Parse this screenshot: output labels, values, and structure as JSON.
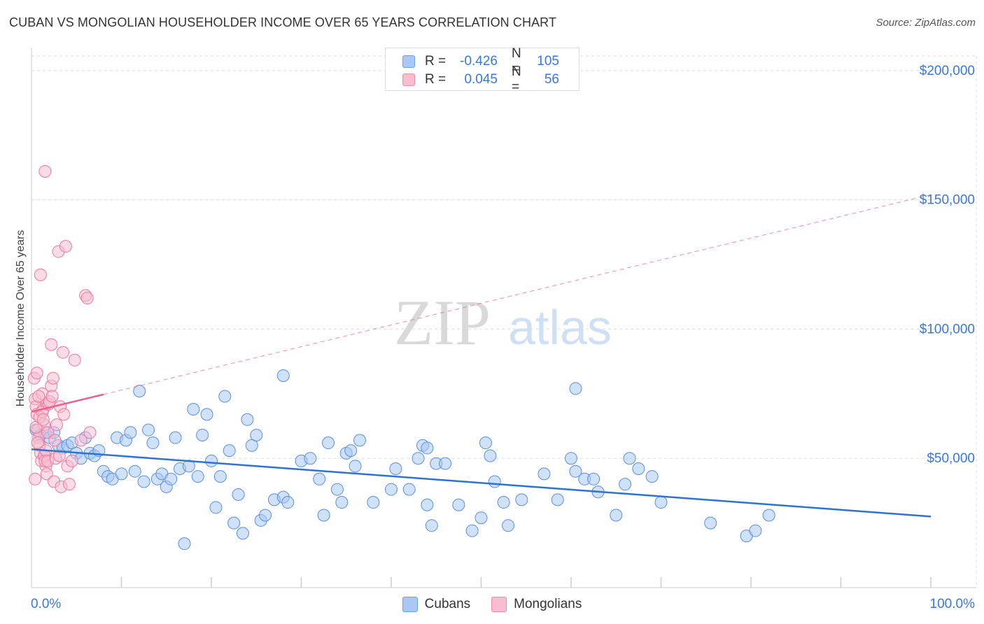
{
  "title": "CUBAN VS MONGOLIAN HOUSEHOLDER INCOME OVER 65 YEARS CORRELATION CHART",
  "source": "Source: ZipAtlas.com",
  "watermark": {
    "zip": "ZIP",
    "atlas": "atlas"
  },
  "legend": {
    "r_label": "R =",
    "n_label": "N =",
    "rows": [
      {
        "r": "-0.426",
        "n": "105",
        "fill": "#a9c8f5",
        "stroke": "#6f9fe6"
      },
      {
        "r": "0.045",
        "n": "56",
        "fill": "#f8bed0",
        "stroke": "#ee8aab"
      }
    ]
  },
  "colors": {
    "cuban_fill": "#a9c8f5",
    "cuban_stroke": "#5b8fe0",
    "cuban_line": "#2f73d0",
    "mongol_fill": "#f8bed0",
    "mongol_stroke": "#ea7aa0",
    "mongol_line": "#e8608c",
    "grid": "#dddddd",
    "tick_text": "#3a78d8"
  },
  "chart_data": {
    "type": "scatter",
    "title": "CUBAN VS MONGOLIAN HOUSEHOLDER INCOME OVER 65 YEARS CORRELATION CHART",
    "xlabel": "",
    "ylabel": "Householder Income Over 65 years",
    "xlim": [
      0,
      100
    ],
    "ylim": [
      0,
      207000
    ],
    "x_tick_labels": [
      "0.0%",
      "100.0%"
    ],
    "y_ticks": [
      50000,
      100000,
      150000,
      200000
    ],
    "y_tick_labels": [
      "$50,000",
      "$100,000",
      "$150,000",
      "$200,000"
    ],
    "grid": true,
    "legend_position": "top-center",
    "series": [
      {
        "name": "Cubans",
        "r": -0.426,
        "n": 105,
        "trend": {
          "x0": 0,
          "y0": 53500,
          "x1": 100,
          "y1": 27500
        },
        "points": [
          [
            0.5,
            61000
          ],
          [
            1,
            59000
          ],
          [
            1.5,
            60000
          ],
          [
            2,
            58000
          ],
          [
            2.5,
            60000
          ],
          [
            3,
            55000
          ],
          [
            3.5,
            54000
          ],
          [
            4,
            55000
          ],
          [
            4.5,
            56000
          ],
          [
            5,
            52000
          ],
          [
            5.5,
            50000
          ],
          [
            6,
            58000
          ],
          [
            6.5,
            52000
          ],
          [
            7,
            51000
          ],
          [
            7.5,
            53000
          ],
          [
            8,
            45000
          ],
          [
            8.5,
            43000
          ],
          [
            9,
            42000
          ],
          [
            9.5,
            58000
          ],
          [
            10,
            44000
          ],
          [
            10.5,
            57000
          ],
          [
            11,
            60000
          ],
          [
            11.5,
            45000
          ],
          [
            12,
            76000
          ],
          [
            12.5,
            41000
          ],
          [
            13,
            61000
          ],
          [
            13.5,
            56000
          ],
          [
            14,
            42000
          ],
          [
            14.5,
            44000
          ],
          [
            15,
            39000
          ],
          [
            15.5,
            42000
          ],
          [
            16,
            58000
          ],
          [
            16.5,
            46000
          ],
          [
            17,
            17000
          ],
          [
            17.5,
            47000
          ],
          [
            18,
            69000
          ],
          [
            18.5,
            43000
          ],
          [
            19,
            59000
          ],
          [
            19.5,
            67000
          ],
          [
            20,
            49000
          ],
          [
            20.5,
            31000
          ],
          [
            21,
            43000
          ],
          [
            21.5,
            74000
          ],
          [
            22,
            53000
          ],
          [
            22.5,
            25000
          ],
          [
            23,
            36000
          ],
          [
            23.5,
            21000
          ],
          [
            24,
            65000
          ],
          [
            24.5,
            55000
          ],
          [
            25,
            59000
          ],
          [
            25.5,
            26000
          ],
          [
            26,
            28000
          ],
          [
            27,
            34000
          ],
          [
            28,
            35000
          ],
          [
            28.5,
            33000
          ],
          [
            28,
            82000
          ],
          [
            30,
            49000
          ],
          [
            31,
            50000
          ],
          [
            32,
            42000
          ],
          [
            32.5,
            28000
          ],
          [
            33,
            56000
          ],
          [
            34,
            38000
          ],
          [
            34.5,
            33000
          ],
          [
            35,
            52000
          ],
          [
            35.5,
            53000
          ],
          [
            36,
            47000
          ],
          [
            36.5,
            57000
          ],
          [
            38,
            33000
          ],
          [
            40,
            38000
          ],
          [
            40.5,
            46000
          ],
          [
            42,
            38000
          ],
          [
            43,
            50000
          ],
          [
            43.5,
            55000
          ],
          [
            44,
            54000
          ],
          [
            44.5,
            24000
          ],
          [
            44,
            32000
          ],
          [
            45,
            48000
          ],
          [
            46,
            48000
          ],
          [
            47.5,
            32000
          ],
          [
            49,
            22000
          ],
          [
            50,
            27000
          ],
          [
            50.5,
            56000
          ],
          [
            51,
            51000
          ],
          [
            51.5,
            41000
          ],
          [
            52.5,
            33000
          ],
          [
            53,
            24000
          ],
          [
            54.5,
            34000
          ],
          [
            57,
            44000
          ],
          [
            58.5,
            34000
          ],
          [
            60,
            50000
          ],
          [
            60.5,
            77000
          ],
          [
            60.5,
            45000
          ],
          [
            61.5,
            42000
          ],
          [
            62.5,
            42000
          ],
          [
            63,
            37000
          ],
          [
            65,
            28000
          ],
          [
            66,
            40000
          ],
          [
            66.5,
            50000
          ],
          [
            67.5,
            46000
          ],
          [
            69,
            43000
          ],
          [
            70,
            33000
          ],
          [
            75.5,
            25000
          ],
          [
            79.5,
            20000
          ],
          [
            80.5,
            22000
          ],
          [
            82,
            28000
          ]
        ]
      },
      {
        "name": "Mongolians",
        "r": 0.045,
        "n": 56,
        "trend": {
          "x0": 0,
          "y0": 68000,
          "x1": 100,
          "y1": 152000,
          "solid_until": 8
        },
        "points": [
          [
            0.3,
            81000
          ],
          [
            0.4,
            73000
          ],
          [
            0.5,
            70000
          ],
          [
            0.6,
            67000
          ],
          [
            0.7,
            61000
          ],
          [
            0.8,
            58000
          ],
          [
            0.9,
            55000
          ],
          [
            1,
            52000
          ],
          [
            1.1,
            49000
          ],
          [
            1.2,
            75000
          ],
          [
            1.3,
            69000
          ],
          [
            1.4,
            63000
          ],
          [
            1.5,
            51000
          ],
          [
            1.6,
            47000
          ],
          [
            1.7,
            71000
          ],
          [
            1.8,
            60000
          ],
          [
            0.4,
            42000
          ],
          [
            0.5,
            62000
          ],
          [
            0.6,
            83000
          ],
          [
            0.7,
            56000
          ],
          [
            0.8,
            74000
          ],
          [
            0.9,
            66000
          ],
          [
            1,
            121000
          ],
          [
            1.2,
            68000
          ],
          [
            1.3,
            65000
          ],
          [
            1.4,
            51000
          ],
          [
            1.5,
            49000
          ],
          [
            1.6,
            53000
          ],
          [
            1.7,
            44000
          ],
          [
            1.8,
            49000
          ],
          [
            1.9,
            71000
          ],
          [
            2,
            72000
          ],
          [
            2.2,
            78000
          ],
          [
            2.3,
            74000
          ],
          [
            2.4,
            81000
          ],
          [
            2.5,
            41000
          ],
          [
            2.6,
            57000
          ],
          [
            2.7,
            50000
          ],
          [
            2.8,
            63000
          ],
          [
            3,
            130000
          ],
          [
            3.1,
            51000
          ],
          [
            3.2,
            70000
          ],
          [
            3.3,
            39000
          ],
          [
            3.5,
            91000
          ],
          [
            3.6,
            67000
          ],
          [
            3.8,
            132000
          ],
          [
            4,
            47000
          ],
          [
            4.2,
            40000
          ],
          [
            4.5,
            49000
          ],
          [
            4.8,
            88000
          ],
          [
            5.5,
            57000
          ],
          [
            6,
            113000
          ],
          [
            6.2,
            112000
          ],
          [
            6.5,
            60000
          ],
          [
            2.2,
            94000
          ],
          [
            1.5,
            161000
          ]
        ]
      }
    ]
  }
}
